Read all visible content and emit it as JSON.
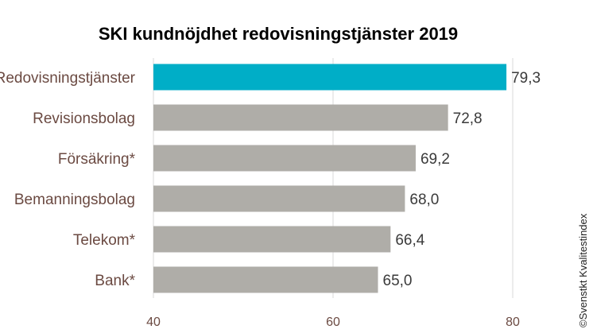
{
  "chart_data": {
    "type": "bar",
    "orientation": "horizontal",
    "title": "SKI kundnöjdhet redovisningstjänster 2019",
    "categories": [
      "Redovisningstjänster",
      "Revisionsbolag",
      "Försäkring*",
      "Bemanningsbolag",
      "Telekom*",
      "Bank*"
    ],
    "values": [
      79.3,
      72.8,
      69.2,
      68.0,
      66.4,
      65.0
    ],
    "value_labels": [
      "79,3",
      "72,8",
      "69,2",
      "68,0",
      "66,4",
      "65,0"
    ],
    "xlim": [
      40,
      80
    ],
    "xticks": [
      40,
      60,
      80
    ],
    "xtick_labels": [
      "40",
      "60",
      "80"
    ],
    "grid": "vertical",
    "colors": {
      "highlight": "#00AEC7",
      "default": "#AFADA8",
      "grid": "#D9D9D9"
    },
    "highlight_index": 0,
    "credit": "©Svenstkt Kvalitestindex"
  }
}
